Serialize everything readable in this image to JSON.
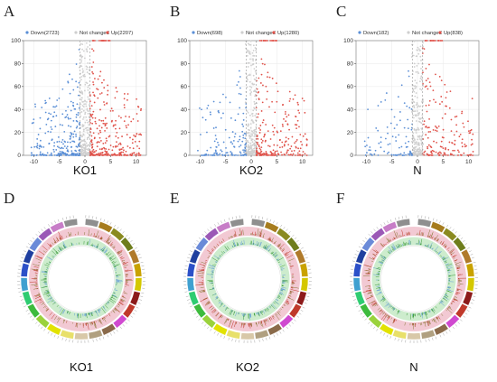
{
  "panels": {
    "volcano_letters": [
      "A",
      "B",
      "C"
    ],
    "circos_letters": [
      "D",
      "E",
      "F"
    ]
  },
  "colors": {
    "down": "#5b8fd6",
    "not_changed": "#cfcfcf",
    "up": "#e0524a"
  },
  "chart_data": [
    {
      "type": "scatter",
      "panel": "A",
      "xlabel": "KO1",
      "xlim": [
        -12,
        12
      ],
      "ylim": [
        0,
        100
      ],
      "xticks": [
        -10,
        -5,
        0,
        5,
        10
      ],
      "yticks": [
        0,
        20,
        40,
        60,
        80,
        100
      ],
      "legend": "top",
      "series": [
        {
          "name": "Down(2723)",
          "count": 2723
        },
        {
          "name": "Not changed"
        },
        {
          "name": "Up(2207)",
          "count": 2207
        }
      ]
    },
    {
      "type": "scatter",
      "panel": "B",
      "xlabel": "KO2",
      "xlim": [
        -12,
        12
      ],
      "ylim": [
        0,
        100
      ],
      "xticks": [
        -10,
        -5,
        0,
        5,
        10
      ],
      "yticks": [
        0,
        20,
        40,
        60,
        80,
        100
      ],
      "legend": "top",
      "series": [
        {
          "name": "Down(698)",
          "count": 698
        },
        {
          "name": "Not changed"
        },
        {
          "name": "Up(1280)",
          "count": 1280
        }
      ]
    },
    {
      "type": "scatter",
      "panel": "C",
      "xlabel": "N",
      "xlim": [
        -12,
        12
      ],
      "ylim": [
        0,
        100
      ],
      "xticks": [
        -10,
        -5,
        0,
        5,
        10
      ],
      "yticks": [
        0,
        20,
        40,
        60,
        80,
        100
      ],
      "legend": "top",
      "series": [
        {
          "name": "Down(182)",
          "count": 182
        },
        {
          "name": "Not changed"
        },
        {
          "name": "Up(838)",
          "count": 838
        }
      ]
    },
    {
      "type": "circos",
      "panel": "D",
      "title": "KO1"
    },
    {
      "type": "circos",
      "panel": "E",
      "title": "KO2"
    },
    {
      "type": "circos",
      "panel": "F",
      "title": "N"
    }
  ],
  "circos_segment_colors": [
    "#8f8f8f",
    "#a67c1e",
    "#8a8a20",
    "#6e7d1c",
    "#b07a2a",
    "#c9a200",
    "#d4c800",
    "#8c1a1a",
    "#c0392b",
    "#d04ad0",
    "#8a6a4a",
    "#b0a080",
    "#d8c8a8",
    "#e8e06a",
    "#e2e200",
    "#9ad23c",
    "#3dbb3d",
    "#2ecc71",
    "#3fa0d0",
    "#2c50c8",
    "#1f3f9f",
    "#6a8ad8",
    "#9b59b6",
    "#c77dc7",
    "#8f8f8f"
  ]
}
